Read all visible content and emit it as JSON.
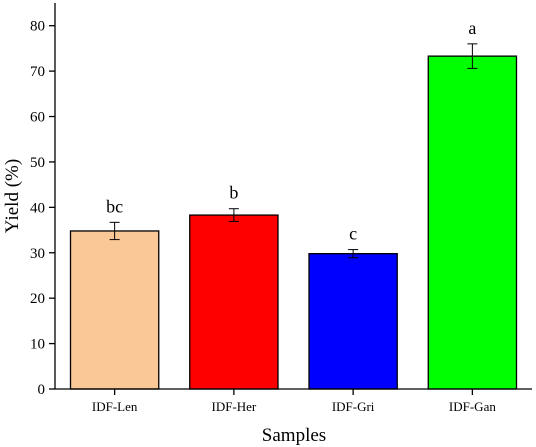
{
  "chart_data": {
    "type": "bar",
    "title": "",
    "xlabel": "Samples",
    "ylabel": "Yield (%)",
    "ylim": [
      0,
      85
    ],
    "yticks": [
      0,
      10,
      20,
      30,
      40,
      50,
      60,
      70,
      80
    ],
    "categories": [
      "IDF-Len",
      "IDF-Her",
      "IDF-Gri",
      "IDF-Gan"
    ],
    "values": [
      34.8,
      38.3,
      29.8,
      73.3
    ],
    "errors": [
      1.9,
      1.4,
      0.9,
      2.7
    ],
    "significance_labels": [
      "bc",
      "b",
      "c",
      "a"
    ],
    "colors": [
      "#fac896",
      "#ff0000",
      "#0000ff",
      "#00ff00"
    ],
    "grid": false,
    "legend": "none"
  }
}
